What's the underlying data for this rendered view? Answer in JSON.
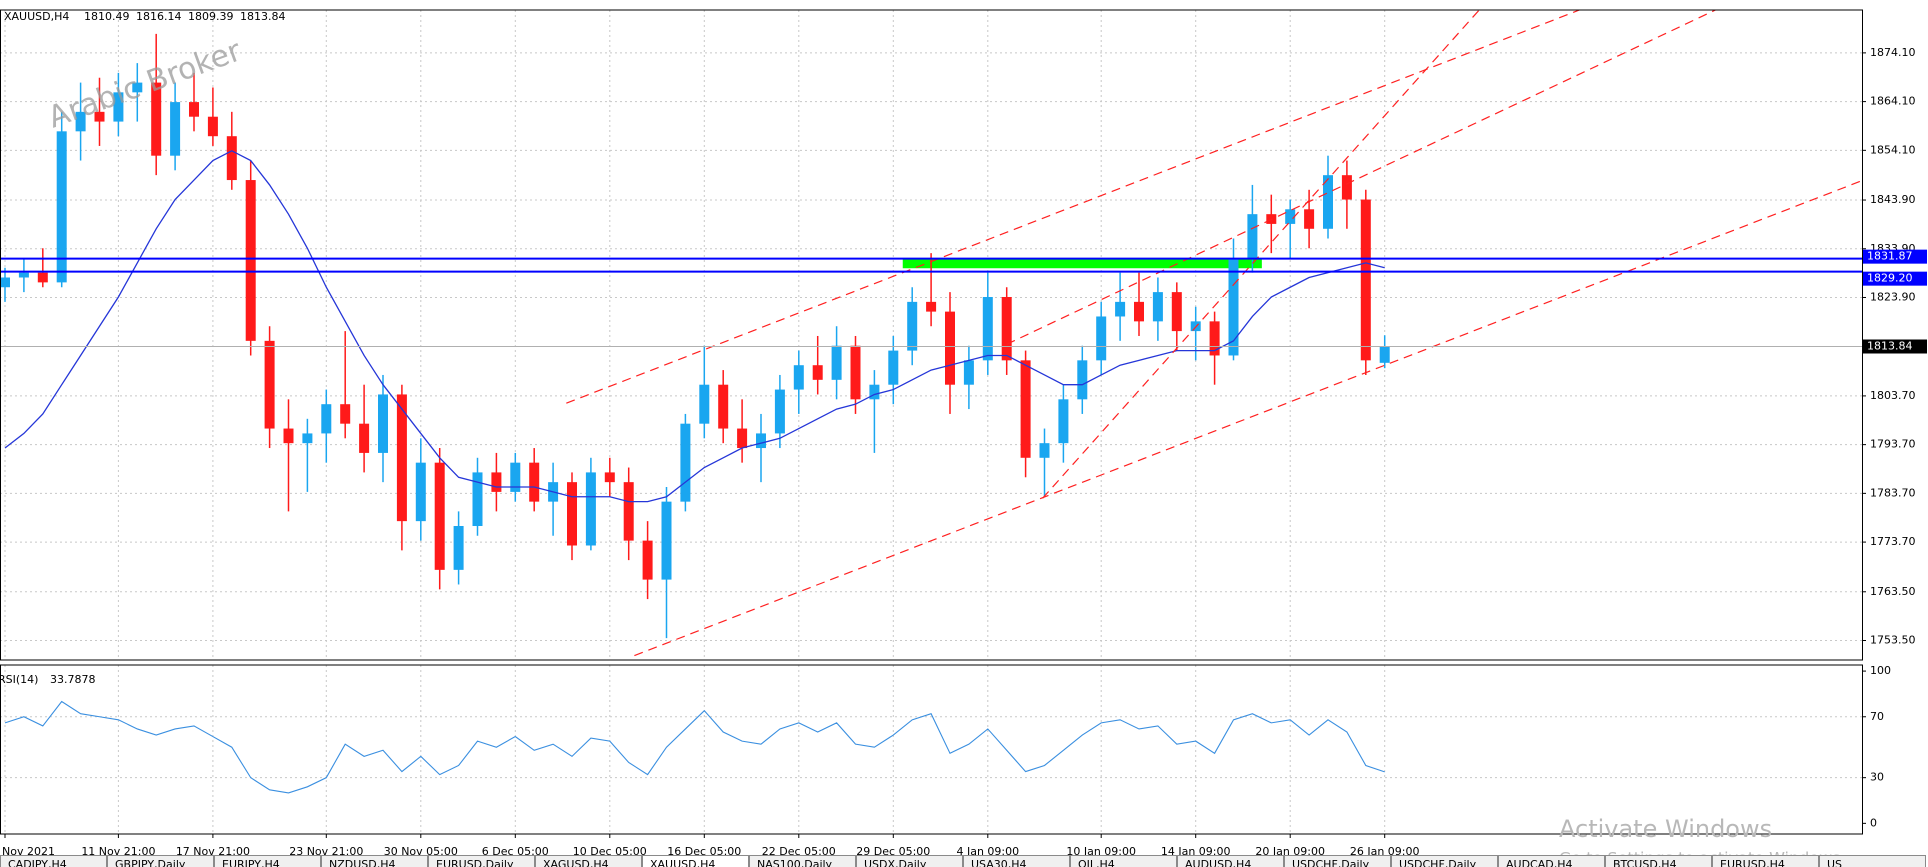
{
  "chart_data": [
    {
      "type": "candlestick",
      "title": "XAUUSD,H4",
      "annotation": "Arabic Broker",
      "categories": [
        "Nov 2021",
        null,
        null,
        null,
        null,
        null,
        "11 Nov 21:00",
        null,
        null,
        null,
        null,
        "17 Nov 21:00",
        null,
        null,
        null,
        null,
        null,
        "23 Nov 21:00",
        null,
        null,
        null,
        null,
        "30 Nov 05:00",
        null,
        null,
        null,
        null,
        "6 Dec 05:00",
        null,
        null,
        null,
        null,
        "10 Dec 05:00",
        null,
        null,
        null,
        null,
        "16 Dec 05:00",
        null,
        null,
        null,
        null,
        "22 Dec 05:00",
        null,
        null,
        null,
        null,
        "29 Dec 05:00",
        null,
        null,
        null,
        null,
        "4 Jan 09:00",
        null,
        null,
        null,
        null,
        null,
        "10 Jan 09:00",
        null,
        null,
        null,
        null,
        "14 Jan 09:00",
        null,
        null,
        null,
        null,
        "20 Jan 09:00",
        null,
        null,
        null,
        null,
        "26 Jan 09:00"
      ],
      "open": [
        1826,
        1828,
        1829,
        1827,
        1858,
        1862,
        1860,
        1866,
        1868,
        1853,
        1864,
        1861,
        1857,
        1848,
        1815,
        1797,
        1794,
        1796,
        1802,
        1798,
        1792,
        1804,
        1778,
        1790,
        1768,
        1777,
        1788,
        1784,
        1790,
        1782,
        1786,
        1773,
        1788,
        1786,
        1774,
        1766,
        1782,
        1798,
        1806,
        1797,
        1793,
        1796,
        1805,
        1810,
        1807,
        1814,
        1803,
        1806,
        1813,
        1823,
        1821,
        1806,
        1811,
        1824,
        1811,
        1791,
        1794,
        1803,
        1811,
        1820,
        1823,
        1819,
        1825,
        1817,
        1819,
        1812,
        1832,
        1841,
        1839,
        1842,
        1838,
        1849,
        1844,
        1810.49
      ],
      "high": [
        1830,
        1832,
        1834,
        1862,
        1868,
        1869,
        1870,
        1872,
        1878,
        1868,
        1870,
        1867,
        1862,
        1852,
        1818,
        1803,
        1799,
        1805,
        1817,
        1806,
        1808,
        1806,
        1795,
        1793,
        1780,
        1791,
        1792,
        1792,
        1793,
        1790,
        1788,
        1791,
        1791,
        1789,
        1778,
        1785,
        1800,
        1814,
        1809,
        1803,
        1800,
        1808,
        1813,
        1816,
        1818,
        1816,
        1809,
        1816,
        1826,
        1833,
        1825,
        1814,
        1829,
        1826,
        1813,
        1797,
        1806,
        1814,
        1823,
        1829,
        1829,
        1828,
        1827,
        1822,
        1821,
        1836,
        1847,
        1845,
        1844,
        1846,
        1853,
        1852,
        1846,
        1816.14
      ],
      "low": [
        1823,
        1825,
        1826,
        1826,
        1852,
        1855,
        1857,
        1860,
        1849,
        1850,
        1858,
        1855,
        1846,
        1812,
        1793,
        1780,
        1784,
        1790,
        1795,
        1788,
        1786,
        1772,
        1774,
        1764,
        1765,
        1775,
        1780,
        1782,
        1780,
        1775,
        1770,
        1772,
        1783,
        1770,
        1762,
        1754,
        1780,
        1795,
        1794,
        1790,
        1786,
        1793,
        1800,
        1804,
        1803,
        1800,
        1792,
        1802,
        1810,
        1818,
        1800,
        1801,
        1808,
        1808,
        1787,
        1783,
        1790,
        1800,
        1808,
        1815,
        1816,
        1815,
        1813,
        1811,
        1806,
        1811,
        1829,
        1833,
        1832,
        1834,
        1836,
        1838,
        1808,
        1809.39
      ],
      "close": [
        1828,
        1829,
        1827,
        1858,
        1862,
        1860,
        1866,
        1868,
        1853,
        1864,
        1861,
        1857,
        1848,
        1815,
        1797,
        1794,
        1796,
        1802,
        1798,
        1792,
        1804,
        1778,
        1790,
        1768,
        1777,
        1788,
        1784,
        1790,
        1782,
        1786,
        1773,
        1788,
        1786,
        1774,
        1766,
        1782,
        1798,
        1806,
        1797,
        1793,
        1796,
        1805,
        1810,
        1807,
        1814,
        1803,
        1806,
        1813,
        1823,
        1821,
        1806,
        1811,
        1824,
        1811,
        1791,
        1794,
        1803,
        1811,
        1820,
        1823,
        1819,
        1825,
        1817,
        1819,
        1812,
        1832,
        1841,
        1839,
        1842,
        1838,
        1849,
        1844,
        1811,
        1813.84
      ],
      "up_color": "#1aa6f0",
      "down_color": "#ff1a1a",
      "ma": {
        "color": "#2536d8",
        "values": [
          1793,
          1796,
          1800,
          1806,
          1812,
          1818,
          1824,
          1831,
          1838,
          1844,
          1848,
          1852,
          1854,
          1852,
          1847,
          1841,
          1834,
          1826,
          1819,
          1812,
          1806,
          1801,
          1796,
          1791,
          1787,
          1786,
          1785,
          1785,
          1785,
          1784,
          1783,
          1783,
          1783,
          1782,
          1782,
          1783,
          1786,
          1789,
          1791,
          1793,
          1794,
          1795,
          1797,
          1799,
          1801,
          1802,
          1804,
          1805,
          1807,
          1809,
          1810,
          1811,
          1812,
          1812,
          1810,
          1808,
          1806,
          1806,
          1808,
          1810,
          1811,
          1812,
          1813,
          1813,
          1813,
          1815,
          1820,
          1824,
          1826,
          1828,
          1829,
          1830,
          1831,
          1830
        ]
      },
      "ylim": [
        1749.5,
        1882.9
      ],
      "yticks": [
        {
          "value": 1753.5,
          "label": "1753.50"
        },
        {
          "value": 1763.5,
          "label": "1763.50"
        },
        {
          "value": 1773.7,
          "label": "1773.70"
        },
        {
          "value": 1783.7,
          "label": "1783.70"
        },
        {
          "value": 1793.7,
          "label": "1793.70"
        },
        {
          "value": 1803.7,
          "label": "1803.70"
        },
        {
          "value": 1823.9,
          "label": "1823.90"
        },
        {
          "value": 1833.9,
          "label": "1833.90"
        },
        {
          "value": 1843.9,
          "label": "1843.90"
        },
        {
          "value": 1854.1,
          "label": "1854.10"
        },
        {
          "value": 1864.1,
          "label": "1864.10"
        },
        {
          "value": 1874.1,
          "label": "1874.10"
        }
      ],
      "grid": true,
      "hlines": [
        {
          "value": 1831.87,
          "color": "#0000ff"
        },
        {
          "value": 1829.2,
          "label": "1829.20",
          "color": "#0000ff"
        }
      ],
      "zone": {
        "x": [
          47.5,
          66.5
        ],
        "y": [
          1829.9,
          1832.0
        ],
        "color": "#00ff00"
      },
      "trendlines": [
        {
          "x": [
            33.3,
            98.2
          ],
          "y": [
            1750.4,
            1847.8
          ]
        },
        {
          "x": [
            29.7,
            83.3
          ],
          "y": [
            1802.2,
            1882.9
          ]
        },
        {
          "x": [
            54.9,
            78.0
          ],
          "y": [
            1782.7,
            1882.9
          ]
        },
        {
          "x": [
            53.0,
            90.5
          ],
          "y": [
            1814.3,
            1882.9
          ]
        }
      ],
      "trend_color": "#ff2020"
    },
    {
      "type": "line",
      "title": "RSI(14)",
      "color": "#3a8fe0",
      "values": [
        66,
        70,
        64,
        80,
        72,
        70,
        68,
        62,
        58,
        62,
        64,
        57,
        50,
        30,
        22,
        20,
        24,
        30,
        52,
        44,
        48,
        34,
        44,
        32,
        38,
        54,
        50,
        57,
        48,
        52,
        44,
        56,
        54,
        40,
        32,
        50,
        62,
        74,
        60,
        54,
        52,
        62,
        66,
        60,
        66,
        52,
        50,
        58,
        68,
        72,
        46,
        52,
        62,
        48,
        34,
        38,
        48,
        58,
        66,
        68,
        62,
        64,
        52,
        54,
        46,
        68,
        72,
        66,
        68,
        58,
        68,
        60,
        38,
        33.7878
      ],
      "ylim": [
        -7,
        104
      ],
      "yticks": [
        0,
        30,
        70,
        100
      ],
      "levels": [
        30,
        70
      ]
    }
  ],
  "tabs": [
    "CADJPY,H4",
    "GBPJPY,Daily",
    "EURJPY,H4",
    "NZDUSD,H4",
    "EURUSD,Daily",
    "XAGUSD,H4",
    "XAUUSD,H4",
    "NAS100,Daily",
    "USDX,Daily",
    "USA30,H4",
    "OIL,H4",
    "AUDUSD,H4",
    "USDCHF,Daily",
    "USDCHF,Daily",
    "AUDCAD,H4",
    "BTCUSD,H4",
    "EURUSD,H4",
    "US"
  ],
  "overlay": {
    "title": "Activate Windows",
    "subtitle": "Go to Settings to activate Windows."
  }
}
